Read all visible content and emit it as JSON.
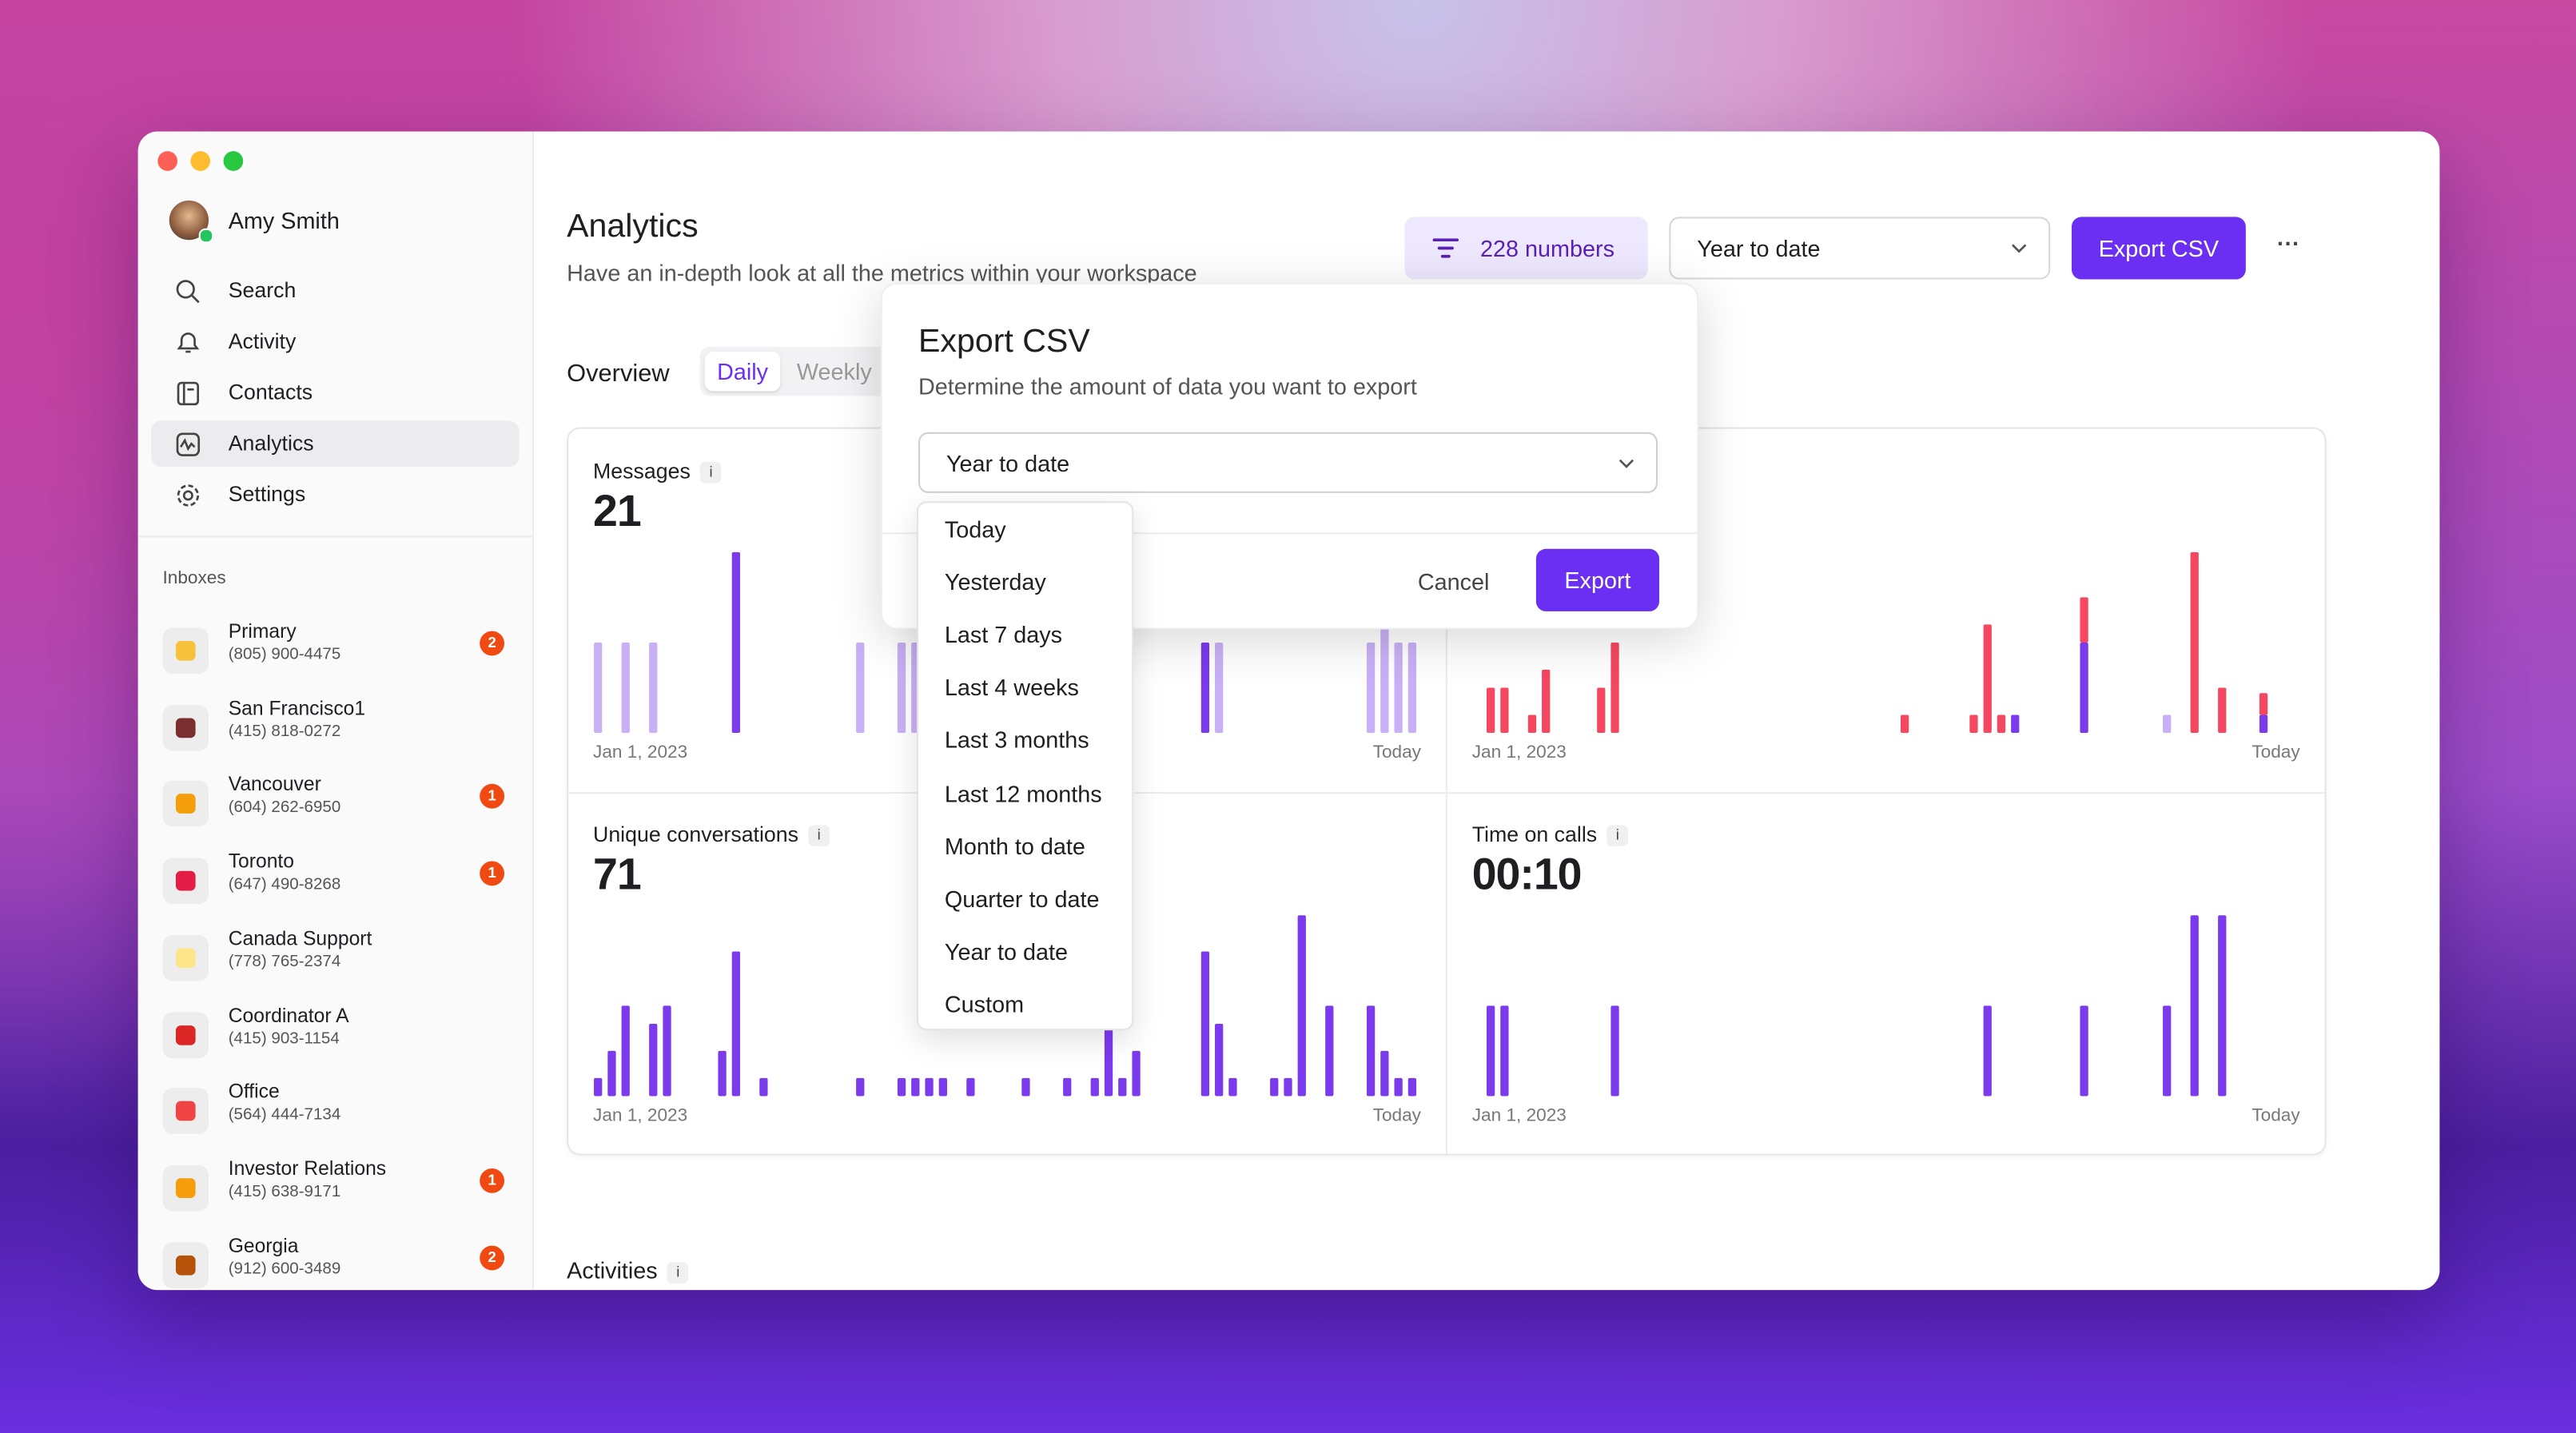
{
  "sidebar": {
    "user": "Amy Smith",
    "nav": [
      "Search",
      "Activity",
      "Contacts",
      "Analytics",
      "Settings"
    ],
    "inboxes_label": "Inboxes",
    "inboxes": [
      {
        "name": "Primary",
        "phone": "(805) 900-4475",
        "badge": 2
      },
      {
        "name": "San Francisco1",
        "phone": "(415) 818-0272"
      },
      {
        "name": "Vancouver",
        "phone": "(604) 262-6950",
        "badge": 1
      },
      {
        "name": "Toronto",
        "phone": "(647) 490-8268",
        "badge": 1
      },
      {
        "name": "Canada Support",
        "phone": "(778) 765-2374"
      },
      {
        "name": "Coordinator A",
        "phone": "(415) 903-1154"
      },
      {
        "name": "Office",
        "phone": "(564) 444-7134"
      },
      {
        "name": "Investor Relations",
        "phone": "(415) 638-9171",
        "badge": 1
      },
      {
        "name": "Georgia",
        "phone": "(912) 600-3489",
        "badge": 2
      }
    ]
  },
  "header": {
    "title": "Analytics",
    "subtitle": "Have an in-depth look at all the metrics within your workspace",
    "filter": "228 numbers",
    "range": "Year to date",
    "export": "Export CSV",
    "more": "···"
  },
  "overview": {
    "label": "Overview",
    "tabs": [
      "Daily",
      "Weekly"
    ]
  },
  "cards": [
    {
      "title": "Messages",
      "value": "21",
      "start": "Jan 1, 2023",
      "end": "Today",
      "ylim": [
        0,
        10
      ],
      "series": [
        {
          "color": "#c9b0f6",
          "values": [
            5,
            0,
            5,
            0,
            5,
            0,
            0,
            0,
            0,
            0,
            0,
            0,
            0,
            0,
            0,
            0,
            0,
            0,
            0,
            5,
            0,
            0,
            5,
            5,
            0,
            0,
            0,
            0,
            0,
            0,
            0,
            0,
            0,
            0,
            0,
            0,
            0,
            0,
            0,
            0,
            0,
            0,
            0,
            0,
            0,
            5,
            0,
            0,
            0,
            0,
            0,
            0,
            0,
            0,
            0,
            0,
            5,
            6,
            5,
            5
          ]
        },
        {
          "color": "#7c3aed",
          "values": [
            0,
            0,
            0,
            0,
            0,
            0,
            0,
            0,
            0,
            0,
            10,
            0,
            0,
            0,
            0,
            0,
            0,
            0,
            0,
            0,
            0,
            0,
            0,
            0,
            0,
            0,
            0,
            0,
            0,
            0,
            0,
            0,
            0,
            0,
            0,
            0,
            0,
            0,
            0,
            0,
            0,
            0,
            0,
            0,
            5,
            0,
            0,
            0,
            0,
            0,
            0,
            0,
            0,
            0,
            0,
            0,
            0,
            0,
            0,
            0
          ]
        }
      ]
    },
    {
      "start": "Jan 1, 2023",
      "end": "Today",
      "ylim": [
        0,
        10
      ],
      "series": [
        {
          "color": "#7c3aed",
          "values": [
            0,
            0,
            0,
            0,
            0,
            0,
            0,
            0,
            0,
            0,
            0,
            0,
            0,
            0,
            0,
            0,
            0,
            0,
            0,
            0,
            0,
            0,
            0,
            0,
            0,
            0,
            0,
            0,
            0,
            0,
            0,
            0,
            0,
            0,
            0,
            0,
            0,
            0,
            0,
            1,
            0,
            0,
            0,
            0,
            5,
            0,
            0,
            0,
            0,
            0,
            0,
            0,
            0,
            0,
            0,
            0,
            0,
            1,
            0,
            0
          ]
        },
        {
          "color": "#f5475f",
          "values": [
            0,
            2.5,
            2.5,
            0,
            1,
            3.5,
            0,
            0,
            0,
            2.5,
            5,
            0,
            0,
            0,
            0,
            0,
            0,
            0,
            0,
            0,
            0,
            0,
            0,
            0,
            0,
            0,
            0,
            0,
            0,
            0,
            0,
            1,
            0,
            0,
            0,
            0,
            1,
            6,
            1,
            0,
            0,
            0,
            0,
            0,
            2.5,
            0,
            0,
            0,
            0,
            0,
            0,
            0,
            10,
            0,
            2.5,
            0,
            0,
            1.2,
            0,
            0
          ]
        },
        {
          "color": "#c9b0f6",
          "values": [
            0,
            0,
            0,
            0,
            0,
            0,
            0,
            0,
            0,
            0,
            0,
            0,
            0,
            0,
            0,
            0,
            0,
            0,
            0,
            0,
            0,
            0,
            0,
            0,
            0,
            0,
            0,
            0,
            0,
            0,
            0,
            0,
            0,
            0,
            0,
            0,
            0,
            0,
            0,
            0,
            0,
            0,
            0,
            0,
            0,
            0,
            0,
            0,
            0,
            0,
            1,
            0,
            0,
            0,
            0,
            0,
            0,
            0,
            0,
            0
          ]
        }
      ]
    },
    {
      "title": "Unique conversations",
      "value": "71",
      "start": "Jan 1, 2023",
      "end": "Today",
      "ylim": [
        0,
        10
      ],
      "series": [
        {
          "color": "#7c3aed",
          "values": [
            1,
            2.5,
            5,
            0,
            4,
            5,
            0,
            0,
            0,
            2.5,
            8,
            0,
            1,
            0,
            0,
            0,
            0,
            0,
            0,
            1,
            0,
            0,
            1,
            1,
            1,
            1,
            0,
            1,
            0,
            0,
            0,
            1,
            0,
            0,
            1,
            0,
            1,
            4,
            1,
            2.5,
            0,
            0,
            0,
            0,
            8,
            4,
            1,
            0,
            0,
            1,
            1,
            10,
            0,
            5,
            0,
            0,
            5,
            2.5,
            1,
            1
          ]
        }
      ]
    },
    {
      "title": "Time on calls",
      "value": "00:10",
      "start": "Jan 1, 2023",
      "end": "Today",
      "ylim": [
        0,
        10
      ],
      "series": [
        {
          "color": "#7c3aed",
          "values": [
            0,
            5,
            5,
            0,
            0,
            0,
            0,
            0,
            0,
            0,
            5,
            0,
            0,
            0,
            0,
            0,
            0,
            0,
            0,
            0,
            0,
            0,
            0,
            0,
            0,
            0,
            0,
            0,
            0,
            0,
            0,
            0,
            0,
            0,
            0,
            0,
            0,
            5,
            0,
            0,
            0,
            0,
            0,
            0,
            5,
            0,
            0,
            0,
            0,
            0,
            5,
            0,
            10,
            0,
            10,
            0,
            0,
            0,
            0,
            0
          ]
        }
      ]
    }
  ],
  "activities": "Activities",
  "modal": {
    "title": "Export CSV",
    "subtitle": "Determine the amount of data you want to export",
    "select": "Year to date",
    "cancel": "Cancel",
    "export": "Export",
    "options": [
      "Today",
      "Yesterday",
      "Last 7 days",
      "Last 4 weeks",
      "Last 3 months",
      "Last 12 months",
      "Month to date",
      "Quarter to date",
      "Year to date",
      "Custom"
    ]
  }
}
